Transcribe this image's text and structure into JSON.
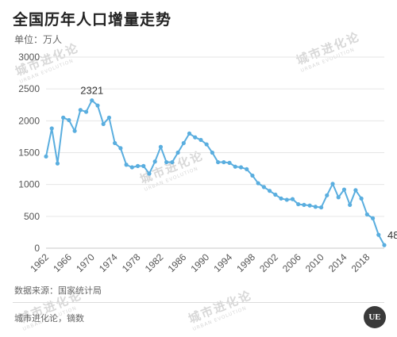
{
  "header": {
    "title": "全国历年人口增量走势",
    "unit": "单位：万人"
  },
  "footer": {
    "source": "数据来源：国家统计局",
    "credit": "城市进化论，镝数"
  },
  "watermark": {
    "text": "城市进化论",
    "sub": "URBAN EVOLUTION",
    "logo": "UE"
  },
  "colors": {
    "line": "#5aaedf",
    "grid": "#e6e6e6"
  },
  "chart_data": {
    "type": "line",
    "title": "全国历年人口增量走势",
    "ylabel": "单位：万人",
    "xlabel": "",
    "ylim": [
      0,
      3000
    ],
    "yticks": [
      0,
      500,
      1000,
      1500,
      2000,
      2500,
      3000
    ],
    "xlim": [
      1962,
      2021
    ],
    "xticks": [
      1962,
      1966,
      1970,
      1974,
      1978,
      1982,
      1986,
      1990,
      1994,
      1998,
      2002,
      2006,
      2010,
      2014,
      2018
    ],
    "grid": "horizontal",
    "x": [
      1962,
      1963,
      1964,
      1965,
      1966,
      1967,
      1968,
      1969,
      1970,
      1971,
      1972,
      1973,
      1974,
      1975,
      1976,
      1977,
      1978,
      1979,
      1980,
      1981,
      1982,
      1983,
      1984,
      1985,
      1986,
      1987,
      1988,
      1989,
      1990,
      1991,
      1992,
      1993,
      1994,
      1995,
      1996,
      1997,
      1998,
      1999,
      2000,
      2001,
      2002,
      2003,
      2004,
      2005,
      2006,
      2007,
      2008,
      2009,
      2010,
      2011,
      2012,
      2013,
      2014,
      2015,
      2016,
      2017,
      2018,
      2019,
      2020,
      2021
    ],
    "values": [
      1440,
      1880,
      1330,
      2050,
      2010,
      1840,
      2170,
      2140,
      2321,
      2240,
      1950,
      2050,
      1650,
      1570,
      1310,
      1270,
      1290,
      1290,
      1170,
      1360,
      1590,
      1350,
      1350,
      1500,
      1650,
      1800,
      1740,
      1700,
      1630,
      1500,
      1350,
      1350,
      1340,
      1280,
      1270,
      1240,
      1140,
      1020,
      960,
      900,
      840,
      780,
      760,
      770,
      690,
      680,
      670,
      650,
      640,
      830,
      1010,
      800,
      920,
      680,
      910,
      780,
      530,
      470,
      210,
      48
    ],
    "annotations": [
      {
        "x": 1970,
        "y": 2321,
        "text": "2321"
      },
      {
        "x": 2021,
        "y": 48,
        "text": "48"
      }
    ]
  }
}
